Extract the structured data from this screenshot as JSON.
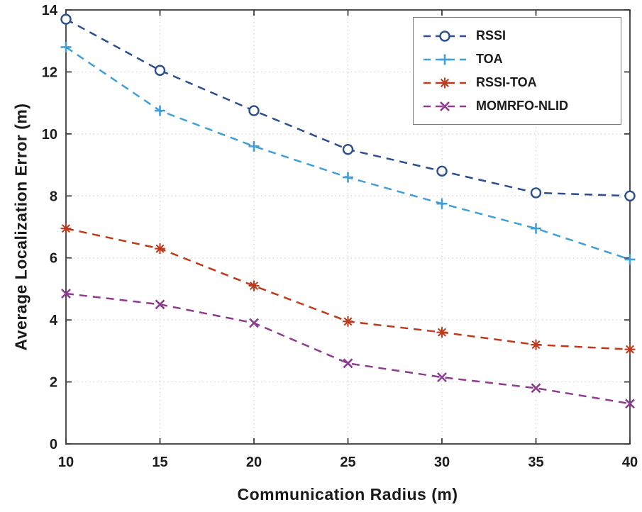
{
  "chart_data": {
    "type": "line",
    "x": [
      10,
      15,
      20,
      25,
      30,
      35,
      40
    ],
    "series": [
      {
        "name": "RSSI",
        "color": "#2c4e8e",
        "marker": "circle",
        "linestyle": "dashed",
        "values": [
          13.7,
          12.05,
          10.75,
          9.5,
          8.8,
          8.1,
          8.0
        ]
      },
      {
        "name": "TOA",
        "color": "#3f9fd8",
        "marker": "plus",
        "linestyle": "dashed",
        "values": [
          12.8,
          10.75,
          9.6,
          8.6,
          7.75,
          6.95,
          5.95
        ]
      },
      {
        "name": "RSSI-TOA",
        "color": "#bf3a1c",
        "marker": "asterisk",
        "linestyle": "dashed",
        "values": [
          6.95,
          6.3,
          5.1,
          3.95,
          3.6,
          3.2,
          3.05
        ]
      },
      {
        "name": "MOMRFO-NLID",
        "color": "#8e3c90",
        "marker": "x",
        "linestyle": "dashed",
        "values": [
          4.85,
          4.5,
          3.9,
          2.6,
          2.15,
          1.8,
          1.3
        ]
      }
    ],
    "title": "",
    "xlabel": "Communication Radius (m)",
    "ylabel": "Average Localization Error (m)",
    "xlim": [
      10,
      40
    ],
    "ylim": [
      0,
      14
    ],
    "xticks": [
      10,
      15,
      20,
      25,
      30,
      35,
      40
    ],
    "yticks": [
      0,
      2,
      4,
      6,
      8,
      10,
      12,
      14
    ],
    "grid": true,
    "grid_style": "dotted",
    "grid_color": "#d2d2d2",
    "axis_color": "#3c3c3c",
    "legend_position": "top-right"
  }
}
